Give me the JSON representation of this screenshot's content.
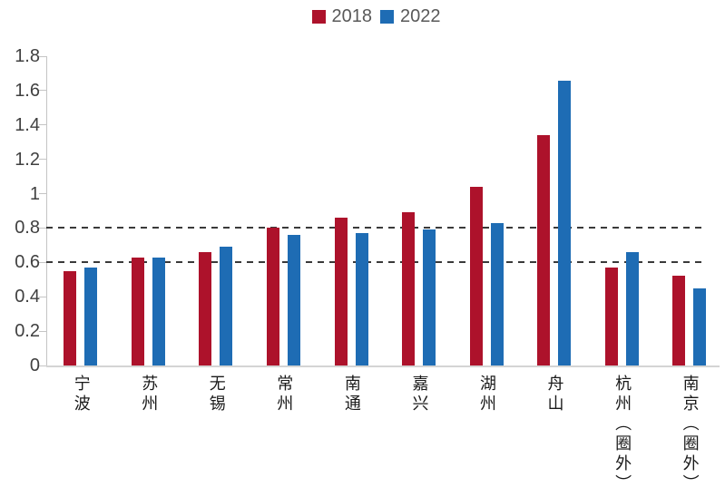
{
  "chart_data": {
    "type": "bar",
    "title": "",
    "xlabel": "",
    "ylabel": "",
    "categories": [
      "宁波",
      "苏州",
      "无锡",
      "常州",
      "南通",
      "嘉兴",
      "湖州",
      "舟山",
      "杭州（圈外）",
      "南京（圈外）"
    ],
    "series": [
      {
        "name": "2018",
        "color": "#AD122B",
        "values": [
          0.55,
          0.63,
          0.66,
          0.8,
          0.86,
          0.89,
          1.04,
          1.34,
          0.57,
          0.52
        ]
      },
      {
        "name": "2022",
        "color": "#1E6CB4",
        "values": [
          0.57,
          0.63,
          0.69,
          0.76,
          0.77,
          0.79,
          0.83,
          1.66,
          0.66,
          0.45
        ]
      }
    ],
    "ylim": [
      0,
      1.8
    ],
    "ytick_labels": [
      "0",
      "0.2",
      "0.4",
      "0.6",
      "0.8",
      "1",
      "1.2",
      "1.4",
      "1.6",
      "1.8"
    ],
    "reference_lines": [
      0.6,
      0.8
    ],
    "grid": false,
    "legend_position": "top-center"
  },
  "colors": {
    "series_2018": "#AD122B",
    "series_2022": "#1E6CB4",
    "reference_line": "#3A3A3A",
    "axis_line": "#C5C5C5",
    "baseline": "#D4D4D4",
    "tick_label_text": "#404040",
    "legend_text": "#595959",
    "category_label_text": "#1A1A1A",
    "background": "#FFFFFF"
  }
}
